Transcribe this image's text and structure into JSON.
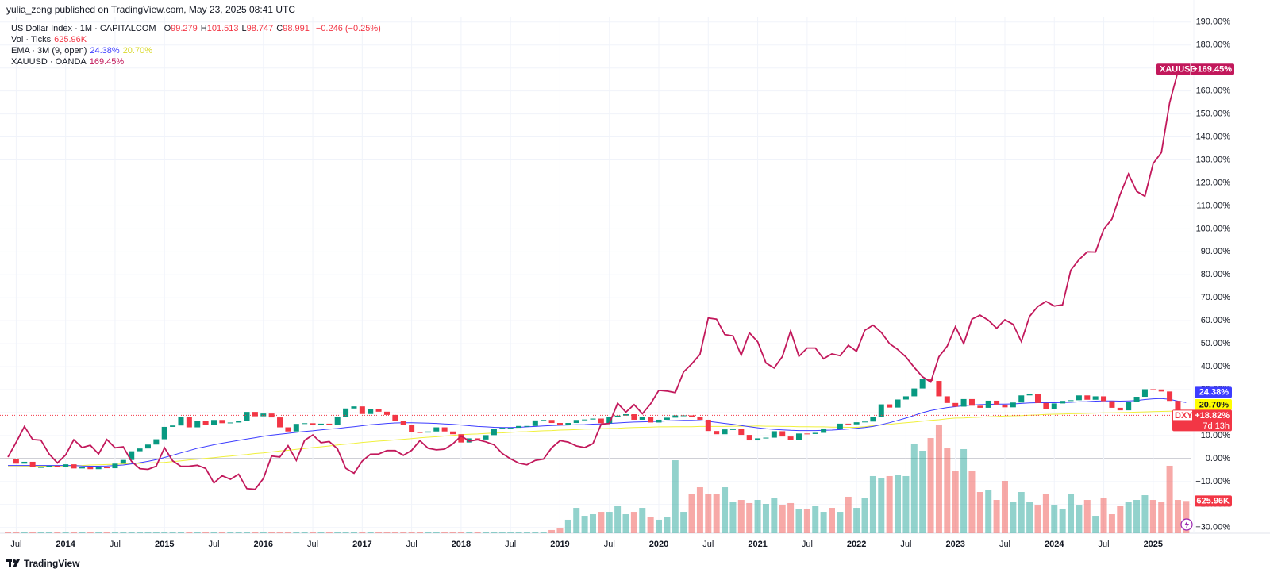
{
  "header": {
    "published": "yulia_zeng published on TradingView.com, May 23, 2025 08:41 UTC"
  },
  "footer": {
    "brand": "TradingView"
  },
  "chart_data": {
    "type": "candlestick",
    "categories": [
      null,
      "Jul",
      null,
      null,
      null,
      null,
      null,
      "2014",
      null,
      null,
      null,
      null,
      null,
      "Jul",
      null,
      null,
      null,
      null,
      null,
      "2015",
      null,
      null,
      null,
      null,
      null,
      "Jul",
      null,
      null,
      null,
      null,
      null,
      "2016",
      null,
      null,
      null,
      null,
      null,
      "Jul",
      null,
      null,
      null,
      null,
      null,
      "2017",
      null,
      null,
      null,
      null,
      null,
      "Jul",
      null,
      null,
      null,
      null,
      null,
      "2018",
      null,
      null,
      null,
      null,
      null,
      "Jul",
      null,
      null,
      null,
      null,
      null,
      "2019",
      null,
      null,
      null,
      null,
      null,
      "Jul",
      null,
      null,
      null,
      null,
      null,
      "2020",
      null,
      null,
      null,
      null,
      null,
      "Jul",
      null,
      null,
      null,
      null,
      null,
      "2021",
      null,
      null,
      null,
      null,
      null,
      "Jul",
      null,
      null,
      null,
      null,
      null,
      "2022",
      null,
      null,
      null,
      null,
      null,
      "Jul",
      null,
      null,
      null,
      null,
      null,
      "2023",
      null,
      null,
      null,
      null,
      null,
      "Jul",
      null,
      null,
      null,
      null,
      null,
      "2024",
      null,
      null,
      null,
      null,
      null,
      "Jul",
      null,
      null,
      null,
      null,
      null,
      "2025",
      null,
      null,
      null,
      null
    ],
    "ylim": [
      -32.5,
      192
    ],
    "yticks": [
      {
        "value": 190,
        "label": "190.00%"
      },
      {
        "value": 180,
        "label": "180.00%"
      },
      {
        "value": 170,
        "label": "170.00%"
      },
      {
        "value": 160,
        "label": "160.00%"
      },
      {
        "value": 150,
        "label": "150.00%"
      },
      {
        "value": 140,
        "label": "140.00%"
      },
      {
        "value": 130,
        "label": "130.00%"
      },
      {
        "value": 120,
        "label": "120.00%"
      },
      {
        "value": 110,
        "label": "110.00%"
      },
      {
        "value": 100,
        "label": "100.00%"
      },
      {
        "value": 90,
        "label": "90.00%"
      },
      {
        "value": 80,
        "label": "80.00%"
      },
      {
        "value": 70,
        "label": "70.00%"
      },
      {
        "value": 60,
        "label": "60.00%"
      },
      {
        "value": 50,
        "label": "50.00%"
      },
      {
        "value": 40,
        "label": "40.00%"
      },
      {
        "value": 30,
        "label": "30.00%"
      },
      {
        "value": 20,
        "label": "20.00%"
      },
      {
        "value": 10,
        "label": "10.00%"
      },
      {
        "value": 0,
        "label": "0.00%"
      },
      {
        "value": -10,
        "label": "−10.00%"
      },
      {
        "value": -20,
        "label": "−20.00%"
      },
      {
        "value": -30,
        "label": "−30.00%"
      }
    ],
    "grid": true,
    "candles": {
      "name": "US Dollar Index · 1M · CAPITALCOM",
      "up_color": "#089981",
      "down_color": "#f23645",
      "legend_values": [
        {
          "label": "O",
          "value": "99.279"
        },
        {
          "label": "H",
          "value": "101.513"
        },
        {
          "label": "L",
          "value": "98.747"
        },
        {
          "label": "C",
          "value": "98.991"
        }
      ],
      "change": "−0.246 (−0.25%)",
      "tag": "DXY",
      "last_label": "+18.82%",
      "countdown": "7d 13h",
      "open": [
        0,
        -0.2,
        -2.2,
        -1.4,
        -3.7,
        -3.7,
        -3.1,
        -3.7,
        -2.5,
        -4.3,
        -3.8,
        -4.6,
        -3.5,
        -4.2,
        -2.2,
        -0.6,
        3.2,
        4.4,
        6.1,
        8.4,
        13.8,
        14.4,
        18.1,
        13.6,
        16.3,
        14.6,
        16.8,
        15.4,
        15.7,
        16.4,
        20.3,
        18.4,
        19.6,
        17.9,
        13.6,
        11.8,
        15.1,
        15.4,
        14.6,
        15.2,
        14.6,
        18.2,
        21.8,
        22.7,
        19.4,
        21.4,
        20.4,
        19.0,
        16.4,
        14.8,
        11.5,
        11.3,
        11.8,
        13.6,
        11.8,
        10.6,
        7.0,
        8.8,
        8.3,
        10.2,
        12.8,
        13.4,
        13.4,
        14.2,
        14.2,
        16.6,
        16.8,
        15.5,
        14.8,
        15.5,
        16.8,
        17.0,
        17.4,
        15.4,
        18.2,
        18.7,
        19.3,
        16.9,
        18.0,
        15.7,
        16.9,
        17.8,
        18.8,
        18.8,
        18.0,
        16.9,
        12.0,
        10.6,
        12.7,
        12.8,
        10.3,
        7.9,
        8.8,
        9.1,
        11.9,
        9.6,
        8.0,
        10.9,
        10.7,
        11.2,
        13.1,
        13.0,
        15.2,
        14.9,
        15.8,
        16.1,
        18.0,
        23.6,
        22.2,
        25.7,
        27.1,
        30.5,
        34.6,
        33.8,
        27.1,
        24.2,
        22.6,
        25.9,
        23.0,
        22.1,
        25.2,
        23.5,
        22.3,
        24.4,
        27.5,
        28.1,
        24.2,
        21.6,
        24.0,
        25.1,
        25.4,
        27.5,
        25.6,
        27.1,
        25.0,
        22.1,
        21.0,
        24.8,
        26.9,
        30.2,
        30.1,
        29.2,
        25.1,
        19.4
      ],
      "close": [
        -0.2,
        -2.2,
        -1.4,
        -3.7,
        -3.7,
        -3.1,
        -3.7,
        -2.5,
        -4.3,
        -3.8,
        -4.6,
        -3.5,
        -4.2,
        -2.2,
        -0.6,
        3.2,
        4.4,
        6.1,
        8.4,
        13.8,
        14.4,
        18.1,
        13.6,
        16.3,
        14.6,
        16.8,
        15.4,
        15.7,
        16.4,
        20.3,
        18.4,
        19.6,
        17.9,
        13.6,
        11.8,
        15.1,
        15.4,
        14.6,
        15.2,
        14.6,
        18.2,
        21.8,
        22.7,
        19.4,
        21.4,
        20.4,
        19.0,
        16.4,
        14.8,
        11.5,
        11.3,
        11.8,
        13.6,
        11.8,
        10.6,
        7.0,
        8.8,
        8.3,
        10.2,
        12.8,
        13.4,
        13.4,
        14.2,
        14.2,
        16.6,
        16.8,
        15.5,
        14.8,
        15.5,
        16.8,
        17.0,
        17.4,
        15.4,
        18.2,
        18.7,
        19.3,
        16.9,
        18.0,
        15.7,
        16.9,
        17.8,
        18.8,
        18.8,
        18.0,
        16.9,
        12.0,
        10.6,
        12.7,
        12.8,
        10.3,
        7.9,
        8.8,
        9.1,
        11.9,
        9.6,
        8.0,
        10.9,
        10.7,
        11.2,
        13.1,
        13.0,
        15.2,
        14.9,
        15.8,
        16.1,
        18.0,
        23.6,
        22.2,
        25.7,
        27.1,
        30.5,
        34.6,
        33.8,
        27.1,
        24.2,
        22.6,
        25.9,
        23.0,
        22.1,
        25.2,
        23.5,
        22.3,
        24.4,
        27.5,
        28.1,
        24.2,
        21.6,
        24.0,
        25.1,
        25.4,
        27.5,
        25.6,
        27.1,
        25.0,
        22.1,
        21.0,
        24.8,
        26.9,
        30.2,
        30.1,
        29.2,
        25.1,
        19.4,
        18.82
      ]
    },
    "volume": {
      "name": "Vol · Ticks",
      "legend_value": "625.96K",
      "last_label": "625.96K",
      "vlim": [
        0,
        10000
      ],
      "up_color": "rgba(38,166,154,0.5)",
      "down_color": "rgba(239,83,80,0.5)",
      "values": [
        20,
        20,
        20,
        20,
        20,
        20,
        20,
        20,
        20,
        20,
        20,
        20,
        20,
        20,
        20,
        20,
        20,
        20,
        20,
        20,
        20,
        20,
        20,
        20,
        20,
        20,
        20,
        20,
        20,
        20,
        20,
        20,
        20,
        20,
        20,
        20,
        20,
        20,
        20,
        20,
        20,
        20,
        20,
        20,
        20,
        20,
        20,
        20,
        20,
        20,
        20,
        20,
        20,
        20,
        20,
        20,
        20,
        20,
        20,
        20,
        20,
        20,
        20,
        20,
        20,
        20,
        62,
        92,
        262,
        492,
        338,
        369,
        415,
        415,
        523,
        369,
        415,
        492,
        308,
        262,
        308,
        1415,
        415,
        769,
        892,
        769,
        769,
        892,
        600,
        646,
        585,
        646,
        569,
        677,
        554,
        585,
        462,
        477,
        523,
        415,
        492,
        415,
        708,
        492,
        692,
        1108,
        1062,
        1108,
        1138,
        1108,
        1723,
        1600,
        1846,
        2108,
        1646,
        1200,
        1631,
        1200,
        800,
        831,
        646,
        1015,
        615,
        800,
        615,
        538,
        769,
        554,
        477,
        769,
        538,
        646,
        338,
        677,
        369,
        523,
        615,
        646,
        738,
        646,
        615,
        1308,
        646,
        625.96
      ]
    },
    "ema": {
      "name": "EMA · 3M (9, open)",
      "lines": [
        {
          "color": "#3d3dff",
          "label": "24.38%",
          "values": [
            -3,
            -3,
            -3,
            -3,
            -3,
            -3,
            -3,
            -3,
            -3,
            -3.2,
            -3.3,
            -3.3,
            -3.2,
            -3,
            -2.8,
            -2.3,
            -1.8,
            -1.2,
            -0.5,
            0.5,
            1.5,
            2.5,
            3.5,
            4.5,
            5.2,
            6,
            6.7,
            7.3,
            7.9,
            8.5,
            9.1,
            9.7,
            10.2,
            10.6,
            11,
            11.4,
            11.8,
            12.1,
            12.5,
            12.8,
            13.1,
            13.5,
            13.9,
            14.3,
            14.7,
            15,
            15.3,
            15.5,
            15.6,
            15.6,
            15.5,
            15.4,
            15.3,
            15.1,
            14.9,
            14.6,
            14.3,
            14,
            13.8,
            13.6,
            13.5,
            13.5,
            13.6,
            13.8,
            14,
            14.2,
            14.4,
            14.5,
            14.6,
            14.7,
            14.8,
            15,
            15.1,
            15.3,
            15.5,
            15.7,
            15.9,
            16,
            16.1,
            16.2,
            16.4,
            16.5,
            16.6,
            16.6,
            16.5,
            16.2,
            15.8,
            15.3,
            14.9,
            14.4,
            13.9,
            13.4,
            13,
            12.7,
            12.5,
            12.3,
            12.2,
            12.2,
            12.2,
            12.3,
            12.4,
            12.6,
            12.9,
            13.2,
            13.5,
            14,
            14.8,
            15.6,
            16.6,
            17.6,
            18.8,
            20,
            20.9,
            21.6,
            22.2,
            22.6,
            23,
            23.3,
            23.5,
            23.6,
            23.7,
            23.7,
            23.8,
            24,
            24.2,
            24.3,
            24.3,
            24.3,
            24.4,
            24.5,
            24.7,
            24.8,
            25,
            25.1,
            25.1,
            25,
            25.1,
            25.3,
            25.7,
            26,
            26.1,
            25.8,
            25,
            24.38
          ]
        },
        {
          "color": "#f0f03c",
          "label": "20.70%",
          "values": [
            -3.5,
            -3.5,
            -3.4,
            -3.4,
            -3.3,
            -3.3,
            -3.2,
            -3.2,
            -3.1,
            -3,
            -2.8,
            -2.7,
            -2.6,
            -2.5,
            -2.3,
            -2.2,
            -2.1,
            -1.9,
            -1.8,
            -1.7,
            -1.3,
            -1,
            -0.6,
            -0.3,
            0.1,
            0.4,
            0.8,
            1.1,
            1.5,
            1.8,
            2.2,
            2.5,
            2.9,
            3.3,
            3.6,
            4,
            4.4,
            4.8,
            5.1,
            5.5,
            5.9,
            6.3,
            6.6,
            7,
            7.3,
            7.6,
            7.8,
            8.1,
            8.4,
            8.7,
            9,
            9.3,
            9.5,
            9.8,
            10.1,
            10.4,
            10.6,
            10.7,
            10.9,
            11.1,
            11.2,
            11.4,
            11.6,
            11.7,
            11.9,
            12.1,
            12.2,
            12.4,
            12.5,
            12.6,
            12.8,
            12.9,
            13,
            13.1,
            13.2,
            13.4,
            13.5,
            13.6,
            13.7,
            13.8,
            13.8,
            13.9,
            13.9,
            13.9,
            14,
            14,
            14,
            14,
            14.1,
            14.1,
            14.1,
            14.2,
            14.1,
            14.1,
            14,
            14,
            13.9,
            13.9,
            13.8,
            13.8,
            13.7,
            13.7,
            13.6,
            13.6,
            13.9,
            14.3,
            14.6,
            14.9,
            15.3,
            15.6,
            15.9,
            16.3,
            16.6,
            16.9,
            17.3,
            17.6,
            17.7,
            17.9,
            18,
            18.2,
            18.3,
            18.5,
            18.6,
            18.7,
            18.9,
            19,
            19.2,
            19.3,
            19.4,
            19.5,
            19.6,
            19.7,
            19.8,
            19.9,
            19.9,
            20,
            20.1,
            20.2,
            20.3,
            20.4,
            20.5,
            20.6,
            20.6,
            20.7
          ]
        }
      ]
    },
    "gold": {
      "name": "XAUUSD · OANDA",
      "tag": "XAUUSD",
      "legend_value": "169.45%",
      "last_label": "+169.45%",
      "color": "#c2185b",
      "values": [
        0.7,
        7.1,
        14.0,
        8.3,
        8.0,
        2.0,
        -1.9,
        1.6,
        8.2,
        4.8,
        5.8,
        2.0,
        8.3,
        4.7,
        5.1,
        -1.2,
        -4.4,
        -4.7,
        -3.3,
        4.7,
        -1.0,
        -3.4,
        -3.3,
        -2.9,
        -4.3,
        -10.6,
        -7.5,
        -9.0,
        -6.8,
        -13.1,
        -13.4,
        -8.7,
        1.1,
        0.7,
        5.6,
        -0.8,
        7.9,
        10.3,
        6.9,
        7.4,
        4.2,
        -4.2,
        -6.4,
        -1.1,
        1.9,
        2.0,
        3.5,
        3.5,
        1.4,
        3.6,
        7.8,
        4.5,
        3.8,
        4.1,
        6.4,
        9.8,
        7.6,
        8.2,
        7.3,
        6.0,
        2.2,
        -0.1,
        -2.0,
        -2.7,
        -0.8,
        -0.2,
        4.7,
        7.8,
        7.2,
        5.5,
        4.8,
        6.5,
        15.0,
        15.3,
        24.1,
        20.2,
        23.5,
        19.5,
        23.8,
        29.7,
        29.4,
        28.7,
        37.7,
        41.2,
        45.4,
        61.2,
        60.7,
        54.0,
        53.4,
        45.0,
        54.7,
        50.8,
        41.6,
        39.4,
        44.4,
        55.6,
        44.5,
        48.1,
        48.1,
        43.4,
        45.6,
        44.8,
        49.3,
        46.7,
        55.8,
        58.1,
        54.9,
        50.0,
        47.5,
        44.2,
        39.7,
        35.6,
        33.3,
        44.3,
        48.9,
        57.4,
        50.0,
        60.7,
        62.4,
        60.2,
        56.7,
        60.4,
        58.4,
        50.9,
        61.9,
        66.2,
        68.4,
        66.4,
        66.9,
        82.0,
        86.6,
        90.0,
        89.9,
        99.8,
        104.3,
        115.0,
        123.9,
        116.3,
        114.2,
        128.4,
        133.2,
        154.9,
        168.4,
        169.45
      ]
    }
  }
}
